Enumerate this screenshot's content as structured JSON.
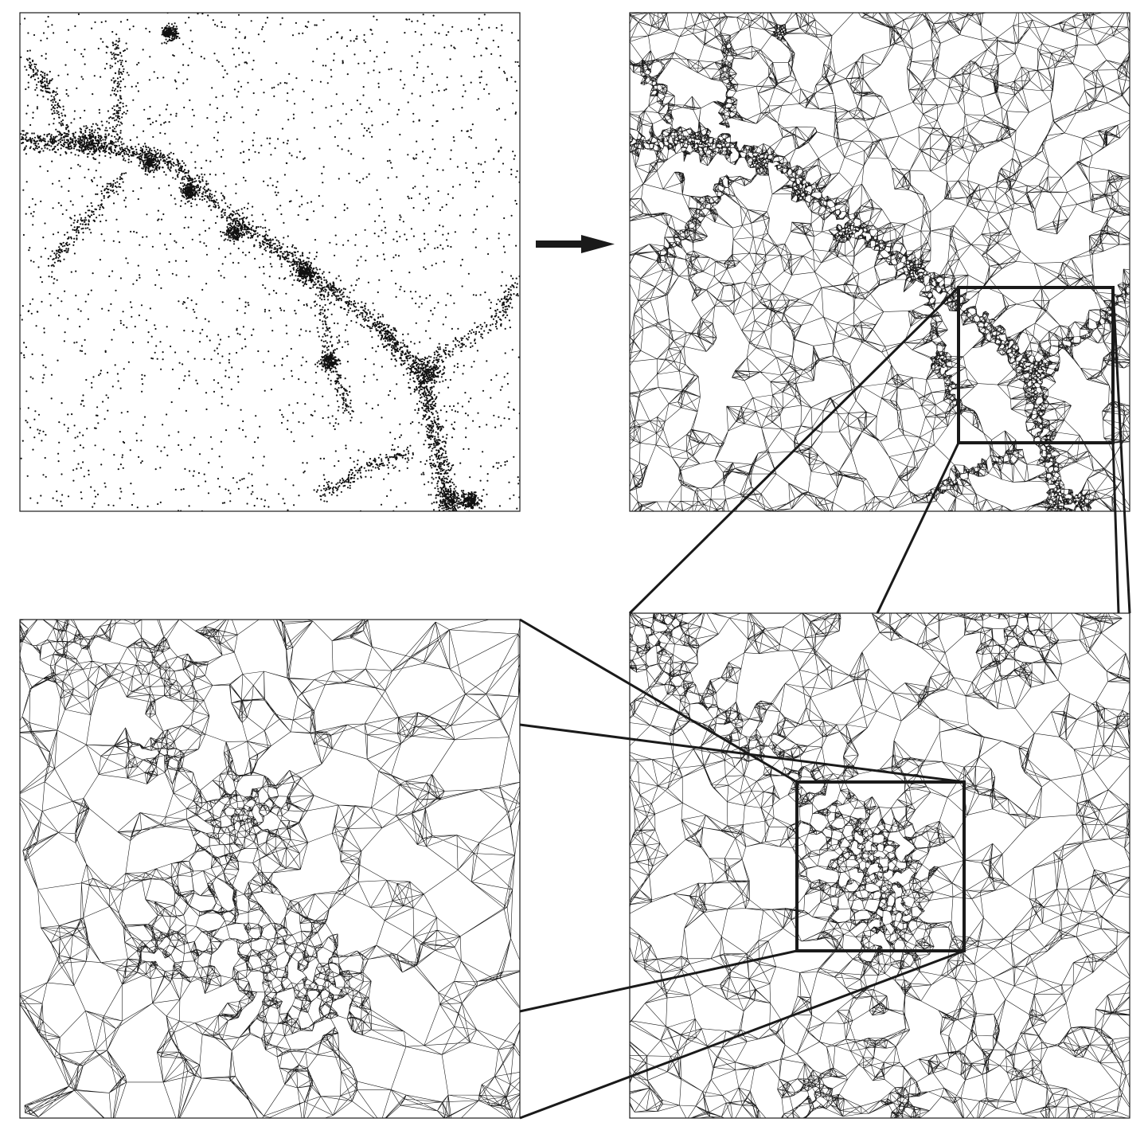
{
  "figure": {
    "ink_color": "#1a1a1a",
    "background_color": "#ffffff",
    "panels": [
      {
        "id": "point-distribution",
        "kind": "particle scatter"
      },
      {
        "id": "delaunay-tessellation",
        "kind": "triangulated mesh"
      },
      {
        "id": "zoom-level-1",
        "kind": "triangulated mesh, magnified"
      },
      {
        "id": "zoom-level-2",
        "kind": "triangulated mesh, magnified"
      }
    ],
    "arrow_icon": "right-arrow-icon"
  }
}
